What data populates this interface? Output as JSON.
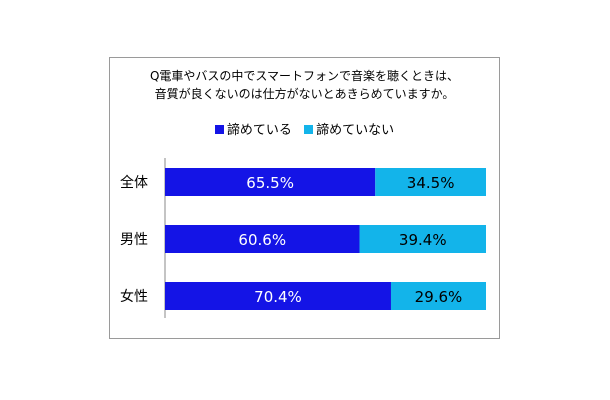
{
  "chart_data": {
    "type": "bar",
    "orientation": "horizontal",
    "stacked": true,
    "title_lines": [
      "Q電車やバスの中でスマートフォンで音楽を聴くときは、",
      "音質が良くないのは仕方がないとあきらめていますか。"
    ],
    "categories": [
      "全体",
      "男性",
      "女性"
    ],
    "series": [
      {
        "name": "諦めている",
        "values": [
          65.5,
          60.6,
          70.4
        ],
        "labels": [
          "65.5%",
          "60.6%",
          "70.4%"
        ],
        "color": "#1414e6"
      },
      {
        "name": "諦めていない",
        "values": [
          34.5,
          39.4,
          29.6
        ],
        "labels": [
          "34.5%",
          "39.4%",
          "29.6%"
        ],
        "color": "#13b4ea"
      }
    ],
    "xlim": [
      0,
      100
    ],
    "grid": false,
    "legend": "top"
  }
}
